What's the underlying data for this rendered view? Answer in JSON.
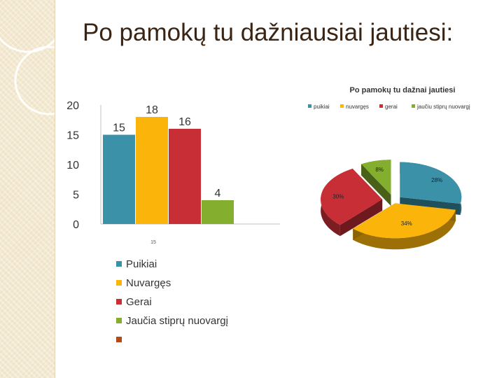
{
  "slide": {
    "title": "Po pamokų tu dažniausiai jautiesi:"
  },
  "colors": {
    "Puikiai": "#3b91a8",
    "Nuvargęs": "#fbb40a",
    "Gerai": "#c82e36",
    "Jaučia stiprų nuovargį": "#84ae2e",
    "extra": "#b24a1b"
  },
  "chart_data": [
    {
      "type": "bar",
      "title": "",
      "xlabel": "",
      "ylabel": "",
      "categories": [
        "15"
      ],
      "ylim": [
        0,
        20
      ],
      "yticks": [
        "0",
        "5",
        "10",
        "15",
        "20"
      ],
      "series": [
        {
          "name": "Puikiai",
          "values": [
            15
          ],
          "color": "#3b91a8"
        },
        {
          "name": "Nuvargęs",
          "values": [
            18
          ],
          "color": "#fbb40a"
        },
        {
          "name": "Gerai",
          "values": [
            16
          ],
          "color": "#c82e36"
        },
        {
          "name": "Jaučia stiprų nuovargį",
          "values": [
            4
          ],
          "color": "#84ae2e"
        }
      ],
      "legend": {
        "placement": "bottom",
        "entries": [
          "Puikiai",
          "Nuvargęs",
          "Gerai",
          "Jaučia stiprų nuovargį",
          ""
        ]
      },
      "grid": false
    },
    {
      "type": "pie",
      "title": "Po pamokų tu dažnai jautiesi",
      "legend": {
        "placement": "top",
        "entries": [
          "puikiai",
          "nuvargęs",
          "gerai",
          "jaučiu stiprų nuovargį"
        ]
      },
      "slices": [
        {
          "label": "puikiai",
          "value": 28,
          "value_label": "28%",
          "color": "#3b91a8"
        },
        {
          "label": "nuvargęs",
          "value": 34,
          "value_label": "34%",
          "color": "#fbb40a"
        },
        {
          "label": "gerai",
          "value": 30,
          "value_label": "30%",
          "color": "#c82e36"
        },
        {
          "label": "jaučiu stiprų nuovargį",
          "value": 8,
          "value_label": "8%",
          "color": "#84ae2e"
        }
      ],
      "style": "3d-exploded"
    }
  ]
}
